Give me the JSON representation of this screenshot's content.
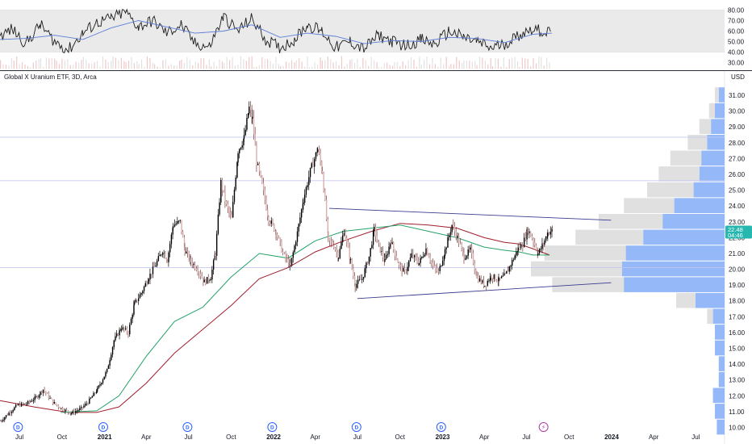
{
  "chart_title": "Global X Uranium ETF, 3D, Arca",
  "currency": "USD",
  "colors": {
    "up": "#000000",
    "down": "#d9b0b0",
    "ema_fast": "#26a269",
    "ema_slow": "#a01e2d",
    "trendline": "#3b3b8f",
    "hline": "#c5c8ef",
    "price_tag": "#26b8b0",
    "osc_line": "#1c1c1c",
    "osc_signal": "#5b7dd8",
    "vp_up": "#82abf8",
    "vp_down": "#d3d3d3"
  },
  "oscillator": {
    "tick_labels": [
      "80.00",
      "70.00",
      "60.00",
      "50.00",
      "40.00",
      "30.00"
    ],
    "band": [
      40,
      80
    ]
  },
  "price_axis": {
    "tick_labels": [
      "31.00",
      "30.00",
      "29.00",
      "28.00",
      "27.00",
      "26.00",
      "25.00",
      "24.00",
      "23.00",
      "22.00",
      "21.00",
      "20.00",
      "19.00",
      "18.00",
      "17.00",
      "16.00",
      "15.00",
      "14.00",
      "13.00",
      "12.00",
      "11.00",
      "10.00"
    ],
    "current_price": "22.48",
    "current_price_sub": "04:46"
  },
  "time_axis": {
    "labels": [
      {
        "text": "Jul",
        "year": false,
        "date": "2020-07-01"
      },
      {
        "text": "Oct",
        "year": false,
        "date": "2020-10-01"
      },
      {
        "text": "2021",
        "year": true,
        "date": "2021-01-01"
      },
      {
        "text": "Apr",
        "year": false,
        "date": "2021-04-01"
      },
      {
        "text": "Jul",
        "year": false,
        "date": "2021-07-01"
      },
      {
        "text": "Oct",
        "year": false,
        "date": "2021-10-01"
      },
      {
        "text": "2022",
        "year": true,
        "date": "2022-01-01"
      },
      {
        "text": "Apr",
        "year": false,
        "date": "2022-04-01"
      },
      {
        "text": "Jul",
        "year": false,
        "date": "2022-07-01"
      },
      {
        "text": "Oct",
        "year": false,
        "date": "2022-10-01"
      },
      {
        "text": "2023",
        "year": true,
        "date": "2023-01-01"
      },
      {
        "text": "Apr",
        "year": false,
        "date": "2023-04-01"
      },
      {
        "text": "Jul",
        "year": false,
        "date": "2023-07-01"
      },
      {
        "text": "Oct",
        "year": false,
        "date": "2023-10-01"
      },
      {
        "text": "2024",
        "year": true,
        "date": "2024-01-01"
      },
      {
        "text": "Apr",
        "year": false,
        "date": "2024-04-01"
      },
      {
        "text": "Jul",
        "year": false,
        "date": "2024-07-01"
      }
    ],
    "dividend_markers": [
      {
        "date": "2020-06-28",
        "label": "D"
      },
      {
        "date": "2020-12-29",
        "label": "D"
      },
      {
        "date": "2021-06-29",
        "label": "D"
      },
      {
        "date": "2021-12-29",
        "label": "D"
      },
      {
        "date": "2022-06-29",
        "label": "D"
      },
      {
        "date": "2022-12-29",
        "label": "D"
      }
    ],
    "event_markers": [
      {
        "date": "2023-08-07",
        "label": "⚡"
      }
    ]
  },
  "chart_data": {
    "type": "candlestick",
    "title": "Global X Uranium ETF, 3D, Arca",
    "ylabel": "USD",
    "ylim": [
      9.5,
      31.5
    ],
    "xlim": [
      "2020-05-20",
      "2024-09-01"
    ],
    "price_path": [
      [
        "2020-05-20",
        10.4
      ],
      [
        "2020-06-10",
        11.0
      ],
      [
        "2020-06-25",
        11.4
      ],
      [
        "2020-07-15",
        11.5
      ],
      [
        "2020-08-05",
        11.9
      ],
      [
        "2020-08-20",
        12.4
      ],
      [
        "2020-09-10",
        11.6
      ],
      [
        "2020-09-28",
        11.2
      ],
      [
        "2020-10-20",
        10.9
      ],
      [
        "2020-11-10",
        11.2
      ],
      [
        "2020-11-25",
        11.6
      ],
      [
        "2020-12-15",
        12.4
      ],
      [
        "2021-01-05",
        13.6
      ],
      [
        "2021-01-20",
        15.5
      ],
      [
        "2021-02-05",
        16.3
      ],
      [
        "2021-02-20",
        16.0
      ],
      [
        "2021-03-05",
        17.8
      ],
      [
        "2021-03-20",
        18.5
      ],
      [
        "2021-04-05",
        19.5
      ],
      [
        "2021-04-20",
        20.3
      ],
      [
        "2021-05-05",
        21.2
      ],
      [
        "2021-05-15",
        20.6
      ],
      [
        "2021-05-28",
        22.8
      ],
      [
        "2021-06-12",
        23.0
      ],
      [
        "2021-06-22",
        21.2
      ],
      [
        "2021-07-05",
        20.5
      ],
      [
        "2021-07-20",
        20.0
      ],
      [
        "2021-08-03",
        19.2
      ],
      [
        "2021-08-17",
        19.5
      ],
      [
        "2021-08-27",
        21.0
      ],
      [
        "2021-09-08",
        25.5
      ],
      [
        "2021-09-20",
        24.0
      ],
      [
        "2021-10-01",
        23.2
      ],
      [
        "2021-10-15",
        27.5
      ],
      [
        "2021-10-28",
        28.3
      ],
      [
        "2021-11-08",
        30.2
      ],
      [
        "2021-11-15",
        29.5
      ],
      [
        "2021-11-24",
        26.8
      ],
      [
        "2021-12-06",
        25.3
      ],
      [
        "2021-12-20",
        23.2
      ],
      [
        "2022-01-05",
        22.4
      ],
      [
        "2022-01-20",
        21.0
      ],
      [
        "2022-02-05",
        20.2
      ],
      [
        "2022-02-20",
        22.3
      ],
      [
        "2022-03-05",
        24.4
      ],
      [
        "2022-03-20",
        26.2
      ],
      [
        "2022-04-05",
        27.6
      ],
      [
        "2022-04-15",
        26.2
      ],
      [
        "2022-04-28",
        21.8
      ],
      [
        "2022-05-10",
        21.5
      ],
      [
        "2022-05-20",
        20.8
      ],
      [
        "2022-06-01",
        22.5
      ],
      [
        "2022-06-15",
        20.5
      ],
      [
        "2022-06-25",
        19.0
      ],
      [
        "2022-07-10",
        19.4
      ],
      [
        "2022-07-25",
        20.8
      ],
      [
        "2022-08-05",
        22.5
      ],
      [
        "2022-08-15",
        21.5
      ],
      [
        "2022-08-28",
        20.5
      ],
      [
        "2022-09-10",
        21.8
      ],
      [
        "2022-09-28",
        20.2
      ],
      [
        "2022-10-10",
        19.8
      ],
      [
        "2022-10-25",
        20.9
      ],
      [
        "2022-11-10",
        20.4
      ],
      [
        "2022-11-25",
        21.3
      ],
      [
        "2022-12-10",
        20.2
      ],
      [
        "2022-12-22",
        19.8
      ],
      [
        "2023-01-05",
        21.2
      ],
      [
        "2023-01-20",
        22.8
      ],
      [
        "2023-02-01",
        22.0
      ],
      [
        "2023-02-15",
        20.8
      ],
      [
        "2023-03-01",
        21.2
      ],
      [
        "2023-03-15",
        19.5
      ],
      [
        "2023-04-01",
        19.0
      ],
      [
        "2023-04-15",
        19.6
      ],
      [
        "2023-05-01",
        19.3
      ],
      [
        "2023-05-15",
        19.6
      ],
      [
        "2023-05-30",
        20.5
      ],
      [
        "2023-06-12",
        21.3
      ],
      [
        "2023-06-22",
        21.6
      ],
      [
        "2023-07-03",
        22.5
      ],
      [
        "2023-07-15",
        21.8
      ],
      [
        "2023-07-25",
        21.0
      ],
      [
        "2023-08-05",
        21.6
      ],
      [
        "2023-08-15",
        22.3
      ],
      [
        "2023-08-25",
        22.48
      ]
    ],
    "ema_fast_path": [
      [
        "2020-09-28",
        10.95
      ],
      [
        "2020-12-15",
        11.05
      ],
      [
        "2021-02-01",
        12.0
      ],
      [
        "2021-04-01",
        14.5
      ],
      [
        "2021-06-01",
        16.7
      ],
      [
        "2021-08-01",
        17.6
      ],
      [
        "2021-10-01",
        19.5
      ],
      [
        "2021-12-01",
        21.0
      ],
      [
        "2022-02-01",
        20.7
      ],
      [
        "2022-04-01",
        21.8
      ],
      [
        "2022-06-01",
        22.4
      ],
      [
        "2022-08-01",
        22.6
      ],
      [
        "2022-10-01",
        22.8
      ],
      [
        "2022-12-01",
        22.4
      ],
      [
        "2023-02-01",
        22.0
      ],
      [
        "2023-04-01",
        21.4
      ],
      [
        "2023-05-15",
        21.2
      ],
      [
        "2023-06-15",
        21.1
      ],
      [
        "2023-07-15",
        20.9
      ],
      [
        "2023-08-20",
        20.9
      ]
    ],
    "ema_slow_path": [
      [
        "2020-05-20",
        11.7
      ],
      [
        "2020-08-01",
        11.3
      ],
      [
        "2020-10-15",
        10.95
      ],
      [
        "2020-12-15",
        10.95
      ],
      [
        "2021-02-01",
        11.3
      ],
      [
        "2021-04-01",
        12.8
      ],
      [
        "2021-06-01",
        14.7
      ],
      [
        "2021-08-01",
        16.2
      ],
      [
        "2021-10-01",
        17.7
      ],
      [
        "2021-12-01",
        19.4
      ],
      [
        "2022-02-01",
        20.1
      ],
      [
        "2022-04-01",
        21.1
      ],
      [
        "2022-06-01",
        21.8
      ],
      [
        "2022-08-01",
        22.4
      ],
      [
        "2022-10-01",
        22.9
      ],
      [
        "2022-12-01",
        22.8
      ],
      [
        "2023-02-01",
        22.6
      ],
      [
        "2023-04-01",
        22.0
      ],
      [
        "2023-05-15",
        21.7
      ],
      [
        "2023-06-15",
        21.6
      ],
      [
        "2023-07-15",
        21.3
      ],
      [
        "2023-08-20",
        20.9
      ]
    ],
    "trendlines": [
      {
        "start": [
          "2022-05-01",
          23.85
        ],
        "end": [
          "2023-12-31",
          23.1
        ]
      },
      {
        "start": [
          "2022-07-01",
          18.15
        ],
        "end": [
          "2023-12-31",
          19.15
        ]
      }
    ],
    "horizontal_lines": [
      28.35,
      25.6,
      20.1
    ],
    "volume_profile": [
      {
        "price": 31.0,
        "up": 0.03,
        "down": 0.02
      },
      {
        "price": 30.0,
        "up": 0.05,
        "down": 0.03
      },
      {
        "price": 29.0,
        "up": 0.07,
        "down": 0.06
      },
      {
        "price": 28.0,
        "up": 0.09,
        "down": 0.1
      },
      {
        "price": 27.0,
        "up": 0.12,
        "down": 0.16
      },
      {
        "price": 26.0,
        "up": 0.13,
        "down": 0.21
      },
      {
        "price": 25.0,
        "up": 0.16,
        "down": 0.24
      },
      {
        "price": 24.0,
        "up": 0.26,
        "down": 0.26
      },
      {
        "price": 23.0,
        "up": 0.32,
        "down": 0.33
      },
      {
        "price": 22.0,
        "up": 0.42,
        "down": 0.35
      },
      {
        "price": 21.0,
        "up": 0.51,
        "down": 0.42
      },
      {
        "price": 20.0,
        "up": 0.53,
        "down": 0.47
      },
      {
        "price": 19.0,
        "up": 0.52,
        "down": 0.37
      },
      {
        "price": 18.0,
        "up": 0.15,
        "down": 0.1
      },
      {
        "price": 17.0,
        "up": 0.06,
        "down": 0.03
      },
      {
        "price": 16.0,
        "up": 0.05,
        "down": 0.0
      },
      {
        "price": 15.0,
        "up": 0.05,
        "down": 0.0
      },
      {
        "price": 14.0,
        "up": 0.03,
        "down": 0.0
      },
      {
        "price": 13.0,
        "up": 0.03,
        "down": 0.0
      },
      {
        "price": 12.0,
        "up": 0.06,
        "down": 0.0
      },
      {
        "price": 11.0,
        "up": 0.05,
        "down": 0.0
      },
      {
        "price": 10.0,
        "up": 0.04,
        "down": 0.0
      }
    ],
    "oscillator_path": [
      [
        "2020-05-20",
        55
      ],
      [
        "2020-06-15",
        62
      ],
      [
        "2020-07-15",
        48
      ],
      [
        "2020-08-15",
        66
      ],
      [
        "2020-09-15",
        50
      ],
      [
        "2020-10-15",
        42
      ],
      [
        "2020-11-15",
        58
      ],
      [
        "2020-12-15",
        68
      ],
      [
        "2021-01-15",
        72
      ],
      [
        "2021-02-15",
        78
      ],
      [
        "2021-03-15",
        64
      ],
      [
        "2021-04-15",
        70
      ],
      [
        "2021-05-15",
        58
      ],
      [
        "2021-06-15",
        66
      ],
      [
        "2021-07-15",
        48
      ],
      [
        "2021-08-15",
        45
      ],
      [
        "2021-09-15",
        74
      ],
      [
        "2021-10-15",
        60
      ],
      [
        "2021-11-15",
        72
      ],
      [
        "2021-12-15",
        52
      ],
      [
        "2022-01-15",
        44
      ],
      [
        "2022-02-15",
        52
      ],
      [
        "2022-03-15",
        66
      ],
      [
        "2022-04-15",
        60
      ],
      [
        "2022-05-15",
        44
      ],
      [
        "2022-06-15",
        50
      ],
      [
        "2022-07-15",
        43
      ],
      [
        "2022-08-15",
        56
      ],
      [
        "2022-09-15",
        50
      ],
      [
        "2022-10-15",
        46
      ],
      [
        "2022-11-15",
        52
      ],
      [
        "2022-12-15",
        47
      ],
      [
        "2023-01-15",
        60
      ],
      [
        "2023-02-15",
        54
      ],
      [
        "2023-03-15",
        50
      ],
      [
        "2023-04-15",
        44
      ],
      [
        "2023-05-15",
        48
      ],
      [
        "2023-06-15",
        56
      ],
      [
        "2023-07-15",
        63
      ],
      [
        "2023-08-01",
        60
      ],
      [
        "2023-08-25",
        58
      ]
    ],
    "oscillator_signal_path": [
      [
        "2020-05-20",
        52
      ],
      [
        "2020-07-15",
        53
      ],
      [
        "2020-09-15",
        56
      ],
      [
        "2020-11-15",
        52
      ],
      [
        "2021-01-15",
        63
      ],
      [
        "2021-03-15",
        70
      ],
      [
        "2021-05-15",
        64
      ],
      [
        "2021-07-15",
        58
      ],
      [
        "2021-09-15",
        60
      ],
      [
        "2021-11-15",
        66
      ],
      [
        "2022-01-15",
        54
      ],
      [
        "2022-03-15",
        58
      ],
      [
        "2022-05-15",
        55
      ],
      [
        "2022-07-15",
        48
      ],
      [
        "2022-09-15",
        51
      ],
      [
        "2022-11-15",
        50
      ],
      [
        "2023-01-15",
        54
      ],
      [
        "2023-03-15",
        53
      ],
      [
        "2023-05-15",
        49
      ],
      [
        "2023-07-15",
        57
      ],
      [
        "2023-08-25",
        58
      ]
    ]
  }
}
